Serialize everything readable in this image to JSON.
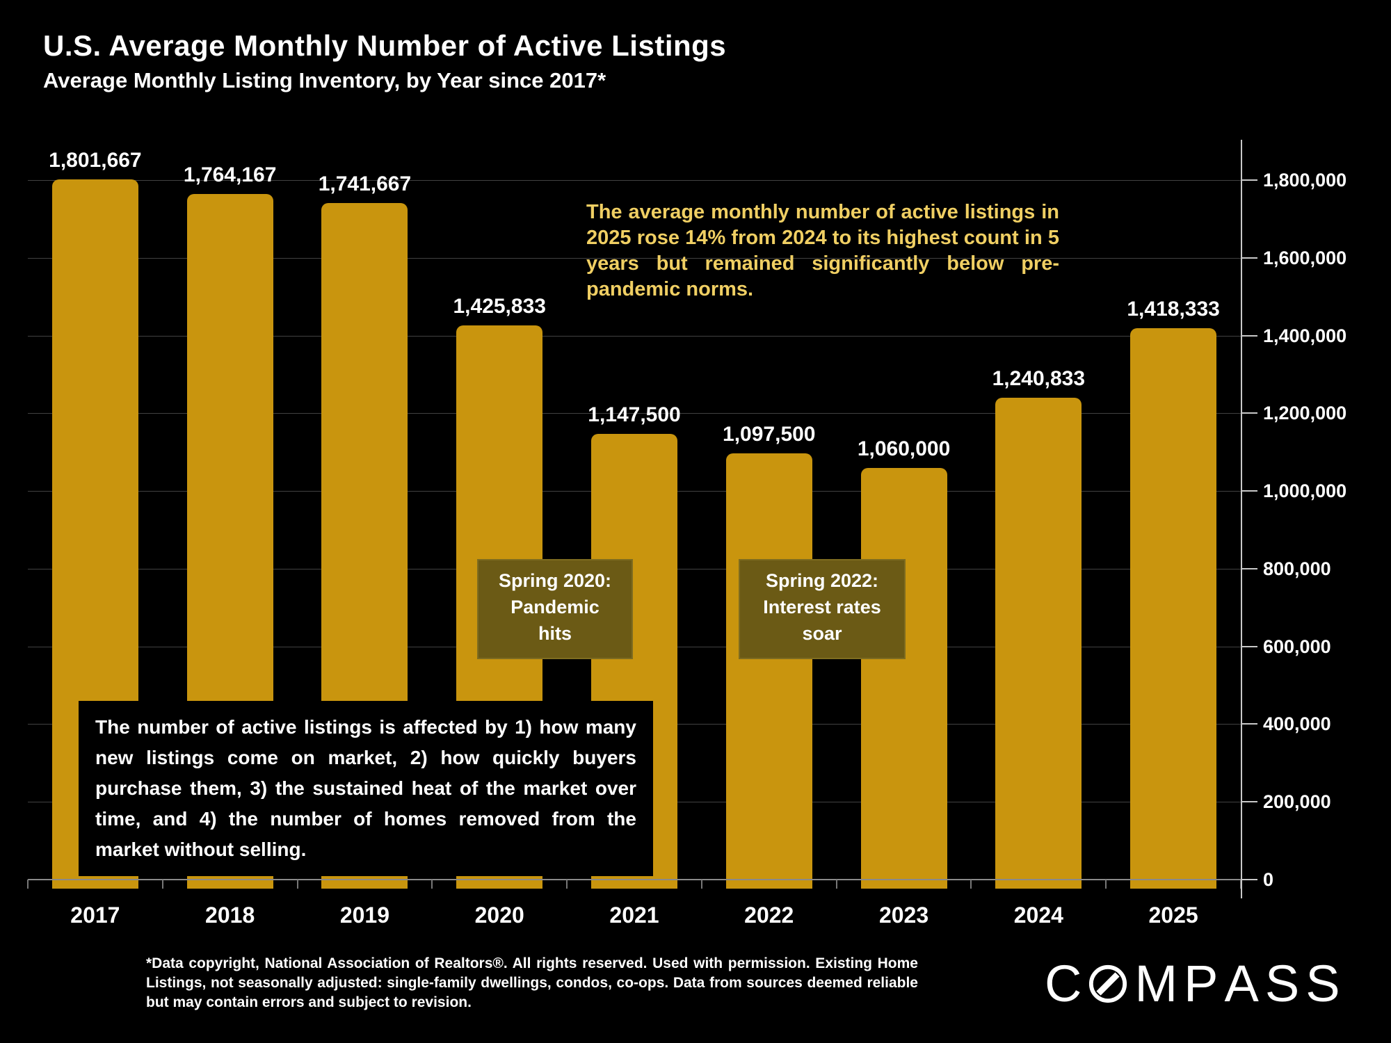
{
  "header": {
    "title": "U.S. Average Monthly Number of Active Listings",
    "subtitle": "Average Monthly Listing Inventory, by Year since 2017*"
  },
  "chart_data": {
    "type": "bar",
    "title": "U.S. Average Monthly Number of Active Listings",
    "subtitle": "Average Monthly Listing Inventory, by Year since 2017*",
    "categories": [
      "2017",
      "2018",
      "2019",
      "2020",
      "2021",
      "2022",
      "2023",
      "2024",
      "2025"
    ],
    "values": [
      1801667,
      1764167,
      1741667,
      1425833,
      1147500,
      1097500,
      1060000,
      1240833,
      1418333
    ],
    "value_labels": [
      "1,801,667",
      "1,764,167",
      "1,741,667",
      "1,425,833",
      "1,147,500",
      "1,097,500",
      "1,060,000",
      "1,240,833",
      "1,418,333"
    ],
    "xlabel": "",
    "ylabel": "",
    "ylim": [
      0,
      1800000
    ],
    "ytick_values": [
      0,
      200000,
      400000,
      600000,
      800000,
      1000000,
      1200000,
      1400000,
      1600000,
      1800000
    ],
    "ytick_labels": [
      "0",
      "200,000",
      "400,000",
      "600,000",
      "800,000",
      "1,000,000",
      "1,200,000",
      "1,400,000",
      "1,600,000",
      "1,800,000"
    ],
    "grid": true,
    "axis_side": "right",
    "legend": false
  },
  "annotations": {
    "insight": "The average monthly number of active listings in 2025 rose 14% from 2024 to its highest count in 5 years but remained significantly below pre-pandemic norms.",
    "callouts": [
      {
        "text": "Spring 2020:\nPandemic\nhits"
      },
      {
        "text": "Spring 2022:\nInterest rates\nsoar"
      }
    ],
    "info_box": "The number of active listings is affected by 1) how many new listings come on market, 2) how quickly buyers purchase them, 3) the sustained heat of the market over time, and 4) the number of homes removed from the market without selling."
  },
  "footnote": "*Data copyright, National Association of Realtors®. All rights reserved. Used with permission. Existing Home Listings, not seasonally adjusted: single-family dwellings, condos, co-ops. Data from sources deemed reliable but may contain errors and subject to revision.",
  "logo": {
    "text": "COMPASS"
  },
  "colors": {
    "background": "#000000",
    "bar_gold": "#C9950E",
    "insight_yellow": "#F0CF63",
    "callout_fill": "#6B5A15",
    "callout_border": "#7E6C20",
    "text_white": "#FFFFFF",
    "gridline": "#424242",
    "axis": "#C9C9C9"
  }
}
